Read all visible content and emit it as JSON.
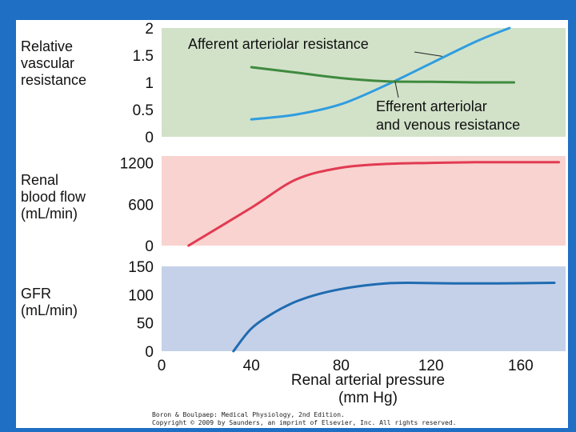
{
  "colors": {
    "background": "#1f6fc4",
    "panel1": "#d2e2c9",
    "panel2": "#f8d3cf",
    "panel3": "#c4d1e9",
    "blue_curve": "#2f9de0",
    "green_curve": "#3f8a3f",
    "red_curve": "#e23a52",
    "gfr_curve": "#1f6bb0"
  },
  "chart_data": [
    {
      "type": "line",
      "ylabel": "Relative vascular resistance",
      "ylim": [
        0,
        2
      ],
      "yticks": [
        "2",
        "1.5",
        "1",
        "0.5",
        "0"
      ],
      "xlim": [
        0,
        180
      ],
      "series": [
        {
          "name": "Afferent arteriolar resistance",
          "x": [
            40,
            60,
            80,
            100,
            120,
            140,
            155
          ],
          "y": [
            0.32,
            0.41,
            0.6,
            0.95,
            1.35,
            1.75,
            2.0
          ]
        },
        {
          "name": "Efferent arteriolar and venous resistance",
          "x": [
            40,
            60,
            80,
            100,
            120,
            140,
            157
          ],
          "y": [
            1.28,
            1.18,
            1.08,
            1.02,
            1.01,
            1.0,
            1.0
          ]
        }
      ]
    },
    {
      "type": "line",
      "ylabel": "Renal blood flow (mL/min)",
      "ylim": [
        0,
        1300
      ],
      "yticks": [
        "1200",
        "600",
        "0"
      ],
      "xlim": [
        0,
        180
      ],
      "series": [
        {
          "name": "Renal blood flow",
          "x": [
            12,
            40,
            60,
            80,
            100,
            120,
            140,
            160,
            177
          ],
          "y": [
            0,
            550,
            960,
            1130,
            1185,
            1200,
            1210,
            1210,
            1210
          ]
        }
      ]
    },
    {
      "type": "line",
      "ylabel": "GFR (mL/min)",
      "ylim": [
        0,
        150
      ],
      "yticks": [
        "150",
        "100",
        "50",
        "0"
      ],
      "xlim": [
        0,
        180
      ],
      "xticks": [
        "0",
        "40",
        "80",
        "120",
        "160"
      ],
      "xlabel": "Renal arterial pressure (mm Hg)",
      "series": [
        {
          "name": "GFR",
          "x": [
            32,
            40,
            50,
            60,
            70,
            80,
            90,
            100,
            110,
            130,
            150,
            175
          ],
          "y": [
            0,
            40,
            68,
            88,
            101,
            110,
            116,
            120,
            121,
            120,
            120,
            121
          ]
        }
      ]
    }
  ],
  "labels": {
    "panel1_ylabel": "Relative\nvascular\nresistance",
    "panel2_ylabel": "Renal\nblood flow\n(mL/min)",
    "panel3_ylabel": "GFR\n(mL/min)",
    "afferent": "Afferent arteriolar resistance",
    "efferent_line1": "Efferent arteriolar",
    "efferent_line2": "and venous resistance",
    "xlabel_line1": "Renal arterial pressure",
    "xlabel_line2": "(mm Hg)"
  },
  "credit": {
    "line1": "Boron & Boulpaep: Medical Physiology, 2nd Edition.",
    "line2": "Copyright © 2009 by Saunders, an imprint of Elsevier, Inc. All rights reserved."
  }
}
